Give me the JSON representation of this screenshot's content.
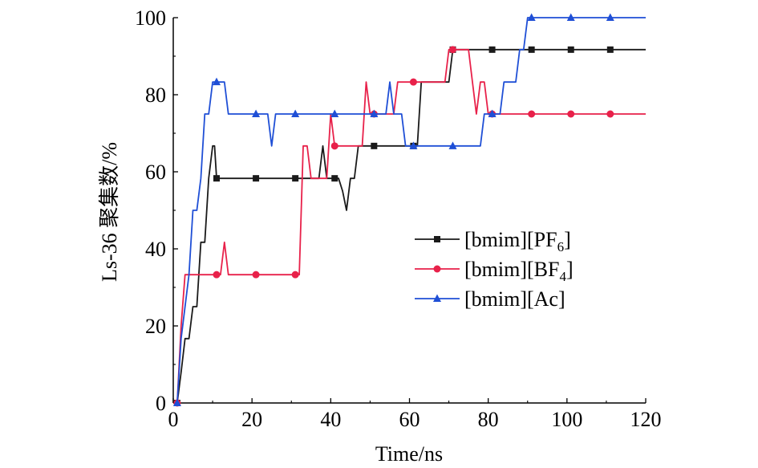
{
  "chart_data": {
    "type": "line",
    "title": "",
    "xlabel": "Time/ns",
    "ylabel": "Ls-36 聚集数/%",
    "xlim": [
      0,
      120
    ],
    "ylim": [
      0,
      100
    ],
    "xticks": [
      0,
      20,
      40,
      60,
      80,
      100,
      120
    ],
    "yticks": [
      0,
      20,
      40,
      60,
      80,
      100
    ],
    "legend_position": "right-middle",
    "series": [
      {
        "name": "[bmim][PF6]",
        "legend_text": "[bmim][PF",
        "legend_sub": "6",
        "legend_close": "]",
        "color": "#1a1a1a",
        "marker": "square",
        "markers_x": [
          1,
          11,
          21,
          31,
          41,
          51,
          61,
          71,
          81,
          91,
          101,
          111
        ],
        "points": [
          [
            1,
            0
          ],
          [
            2,
            8
          ],
          [
            3,
            16.7
          ],
          [
            4,
            16.7
          ],
          [
            5,
            25
          ],
          [
            6,
            25
          ],
          [
            7,
            41.7
          ],
          [
            8,
            41.7
          ],
          [
            9,
            58.3
          ],
          [
            10,
            66.7
          ],
          [
            10.5,
            66.7
          ],
          [
            11,
            58.3
          ],
          [
            21,
            58.3
          ],
          [
            31,
            58.3
          ],
          [
            37,
            58.3
          ],
          [
            38,
            66.7
          ],
          [
            39,
            58.3
          ],
          [
            41,
            58.3
          ],
          [
            42,
            58.3
          ],
          [
            43,
            55
          ],
          [
            44,
            50
          ],
          [
            45,
            58.3
          ],
          [
            46,
            58.3
          ],
          [
            47,
            66.7
          ],
          [
            51,
            66.7
          ],
          [
            61,
            66.7
          ],
          [
            62,
            66.7
          ],
          [
            63,
            83.3
          ],
          [
            70,
            83.3
          ],
          [
            71,
            91.7
          ],
          [
            81,
            91.7
          ],
          [
            91,
            91.7
          ],
          [
            101,
            91.7
          ],
          [
            111,
            91.7
          ],
          [
            120,
            91.7
          ]
        ]
      },
      {
        "name": "[bmim][BF4]",
        "legend_text": "[bmim][BF",
        "legend_sub": "4",
        "legend_close": "]",
        "color": "#e8214a",
        "marker": "circle",
        "markers_x": [
          1,
          11,
          21,
          31,
          41,
          51,
          61,
          71,
          81,
          91,
          101,
          111
        ],
        "points": [
          [
            1,
            0
          ],
          [
            2,
            20
          ],
          [
            3,
            33.3
          ],
          [
            11,
            33.3
          ],
          [
            12,
            33.3
          ],
          [
            13,
            41.7
          ],
          [
            14,
            33.3
          ],
          [
            21,
            33.3
          ],
          [
            31,
            33.3
          ],
          [
            32,
            33.3
          ],
          [
            33,
            66.7
          ],
          [
            34,
            66.7
          ],
          [
            35,
            58.3
          ],
          [
            39,
            58.3
          ],
          [
            40,
            75
          ],
          [
            41,
            66.7
          ],
          [
            48,
            66.7
          ],
          [
            49,
            83.3
          ],
          [
            50,
            75
          ],
          [
            51,
            75
          ],
          [
            52,
            75
          ],
          [
            53,
            75
          ],
          [
            54,
            75
          ],
          [
            55,
            75
          ],
          [
            56,
            75
          ],
          [
            57,
            83.3
          ],
          [
            61,
            83.3
          ],
          [
            69,
            83.3
          ],
          [
            70,
            91.7
          ],
          [
            71,
            91.7
          ],
          [
            75,
            91.7
          ],
          [
            76,
            83.3
          ],
          [
            77,
            75
          ],
          [
            78,
            83.3
          ],
          [
            79,
            83.3
          ],
          [
            80,
            75
          ],
          [
            81,
            75
          ],
          [
            91,
            75
          ],
          [
            101,
            75
          ],
          [
            111,
            75
          ],
          [
            120,
            75
          ]
        ]
      },
      {
        "name": "[bmim][Ac]",
        "legend_text": "[bmim][Ac]",
        "legend_sub": "",
        "legend_close": "",
        "color": "#1f4fd6",
        "marker": "triangle",
        "markers_x": [
          1,
          11,
          21,
          31,
          41,
          51,
          61,
          71,
          81,
          91,
          101,
          111
        ],
        "points": [
          [
            1,
            0
          ],
          [
            2,
            16.7
          ],
          [
            3,
            25
          ],
          [
            4,
            33.3
          ],
          [
            5,
            50
          ],
          [
            6,
            50
          ],
          [
            7,
            58.3
          ],
          [
            8,
            75
          ],
          [
            9,
            75
          ],
          [
            10,
            83.3
          ],
          [
            11,
            83.3
          ],
          [
            13,
            83.3
          ],
          [
            14,
            75
          ],
          [
            21,
            75
          ],
          [
            24,
            75
          ],
          [
            25,
            66.7
          ],
          [
            26,
            75
          ],
          [
            31,
            75
          ],
          [
            41,
            75
          ],
          [
            51,
            75
          ],
          [
            54,
            75
          ],
          [
            55,
            83.3
          ],
          [
            56,
            75
          ],
          [
            58,
            75
          ],
          [
            59,
            66.7
          ],
          [
            61,
            66.7
          ],
          [
            71,
            66.7
          ],
          [
            78,
            66.7
          ],
          [
            79,
            75
          ],
          [
            81,
            75
          ],
          [
            83,
            75
          ],
          [
            84,
            83.3
          ],
          [
            87,
            83.3
          ],
          [
            88,
            91.7
          ],
          [
            89,
            91.7
          ],
          [
            90,
            100
          ],
          [
            91,
            100
          ],
          [
            101,
            100
          ],
          [
            111,
            100
          ],
          [
            120,
            100
          ]
        ]
      }
    ]
  }
}
